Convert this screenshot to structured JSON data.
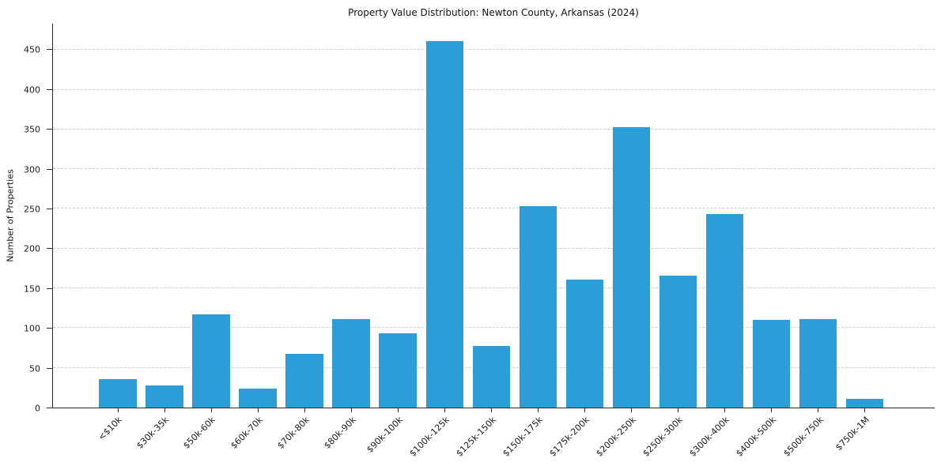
{
  "chart_data": {
    "type": "bar",
    "title": "Property Value Distribution: Newton County, Arkansas (2024)",
    "ylabel": "Number of Properties",
    "xlabel": "",
    "categories": [
      "<$10k",
      "$30k-35k",
      "$50k-60k",
      "$60k-70k",
      "$70k-80k",
      "$80k-90k",
      "$90k-100k",
      "$100k-125k",
      "$125k-150k",
      "$150k-175k",
      "$175k-200k",
      "$200k-250k",
      "$250k-300k",
      "$300k-400k",
      "$400k-500k",
      "$500k-750k",
      "$750k-1M"
    ],
    "values": [
      36,
      28,
      117,
      24,
      68,
      111,
      93,
      461,
      78,
      253,
      161,
      353,
      166,
      244,
      110,
      111,
      11
    ],
    "yticks": [
      0,
      50,
      100,
      150,
      200,
      250,
      300,
      350,
      400,
      450
    ],
    "ylim": [
      0,
      483
    ],
    "bar_color": "#2D9DD8",
    "axis_color": "#2b2b2b",
    "grid": "horizontal-dashed",
    "gridline_color": "#cdcdcd",
    "legend": "none"
  }
}
